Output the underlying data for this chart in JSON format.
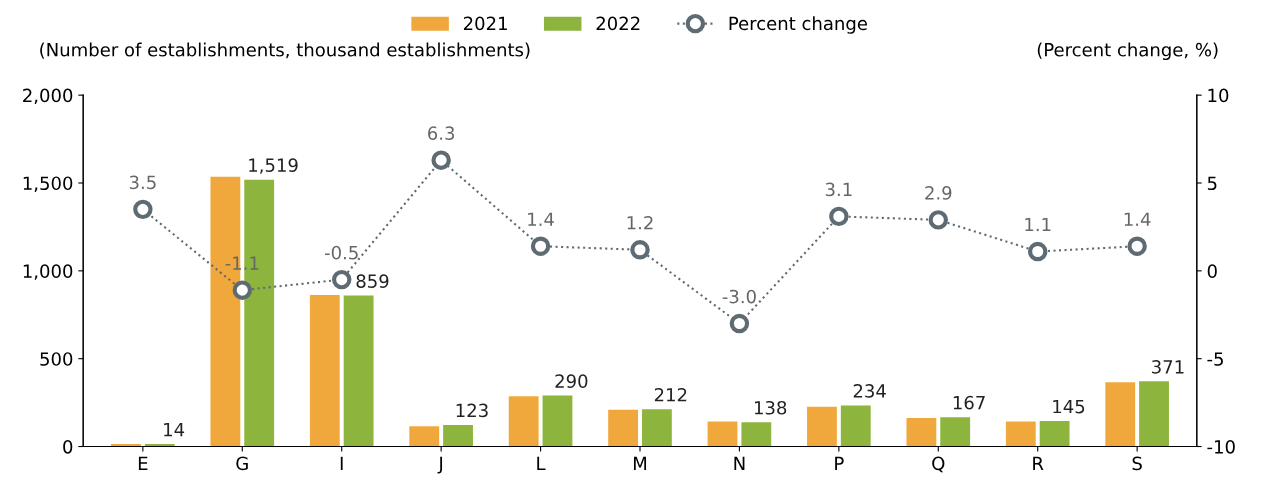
{
  "chart_data": {
    "type": "bar",
    "ylabel": "(Number of establishments, thousand establishments)",
    "y2label": "(Percent change, %)",
    "categories": [
      "E",
      "G",
      "I",
      "J",
      "L",
      "M",
      "N",
      "P",
      "Q",
      "R",
      "S"
    ],
    "series": [
      {
        "name": "2021",
        "color": "#f0a83c",
        "values": [
          14,
          1536,
          863,
          116,
          286,
          209,
          142,
          227,
          162,
          143,
          366
        ]
      },
      {
        "name": "2022",
        "color": "#8db43c",
        "values": [
          14,
          1519,
          859,
          123,
          290,
          212,
          138,
          234,
          167,
          145,
          371
        ],
        "value_labels": [
          "14",
          "1,519",
          "859",
          "123",
          "290",
          "212",
          "138",
          "234",
          "167",
          "145",
          "371"
        ]
      },
      {
        "name": "Percent change",
        "type": "line",
        "axis": "y2",
        "color": "#5f6b73",
        "marker": "circle",
        "line_style": "dotted",
        "values": [
          3.5,
          -1.1,
          -0.5,
          6.3,
          1.4,
          1.2,
          -3.0,
          3.1,
          2.9,
          1.1,
          1.4
        ],
        "value_labels": [
          "3.5",
          "-1.1",
          "-0.5",
          "6.3",
          "1.4",
          "1.2",
          "-3.0",
          "3.1",
          "2.9",
          "1.1",
          "1.4"
        ]
      }
    ],
    "ylim": [
      0,
      2000
    ],
    "yticks": [
      0,
      {
        "value": 500,
        "label": "500"
      },
      {
        "value": 1000,
        "label": "1,000"
      },
      {
        "value": 1500,
        "label": "1,500"
      },
      {
        "value": 2000,
        "label": "2,000"
      }
    ],
    "y2lim": [
      -10,
      10
    ],
    "y2ticks": [
      {
        "value": -10,
        "label": "-10"
      },
      {
        "value": -5,
        "label": "-5"
      },
      0,
      5,
      10
    ],
    "grid": false,
    "legend": "top"
  }
}
